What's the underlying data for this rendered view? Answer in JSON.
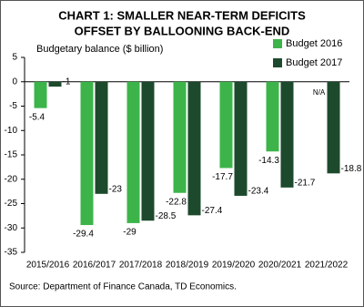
{
  "chart_data": {
    "type": "bar",
    "title": [
      "CHART 1: SMALLER NEAR-TERM DEFICITS",
      "OFFSET BY BALLOONING BACK-END"
    ],
    "y_label": "Budgetary balance ($ billion)",
    "categories": [
      "2015/2016",
      "2016/2017",
      "2017/2018",
      "2018/2019",
      "2019/2020",
      "2020/2021",
      "2021/2022"
    ],
    "series": [
      {
        "name": "Budget 2016",
        "color": "#3cb44a",
        "values": [
          -5.4,
          -29.4,
          -29,
          -22.8,
          -17.7,
          -14.3,
          null
        ],
        "value_labels": [
          "-5.4",
          "-29.4",
          "-29",
          "-22.8",
          "-17.7",
          "-14.3",
          "N/A"
        ]
      },
      {
        "name": "Budget 2017",
        "color": "#1d4a2c",
        "values": [
          -1,
          -23,
          -28.5,
          -27.4,
          -23.4,
          -21.7,
          -18.8
        ]
      }
    ],
    "ylim": [
      -35,
      5
    ],
    "yticks": [
      -35,
      -30,
      -25,
      -20,
      -15,
      -10,
      -5,
      0,
      5
    ],
    "legend": "top-right",
    "source": "Source: Department of Finance Canada, TD Economics."
  }
}
